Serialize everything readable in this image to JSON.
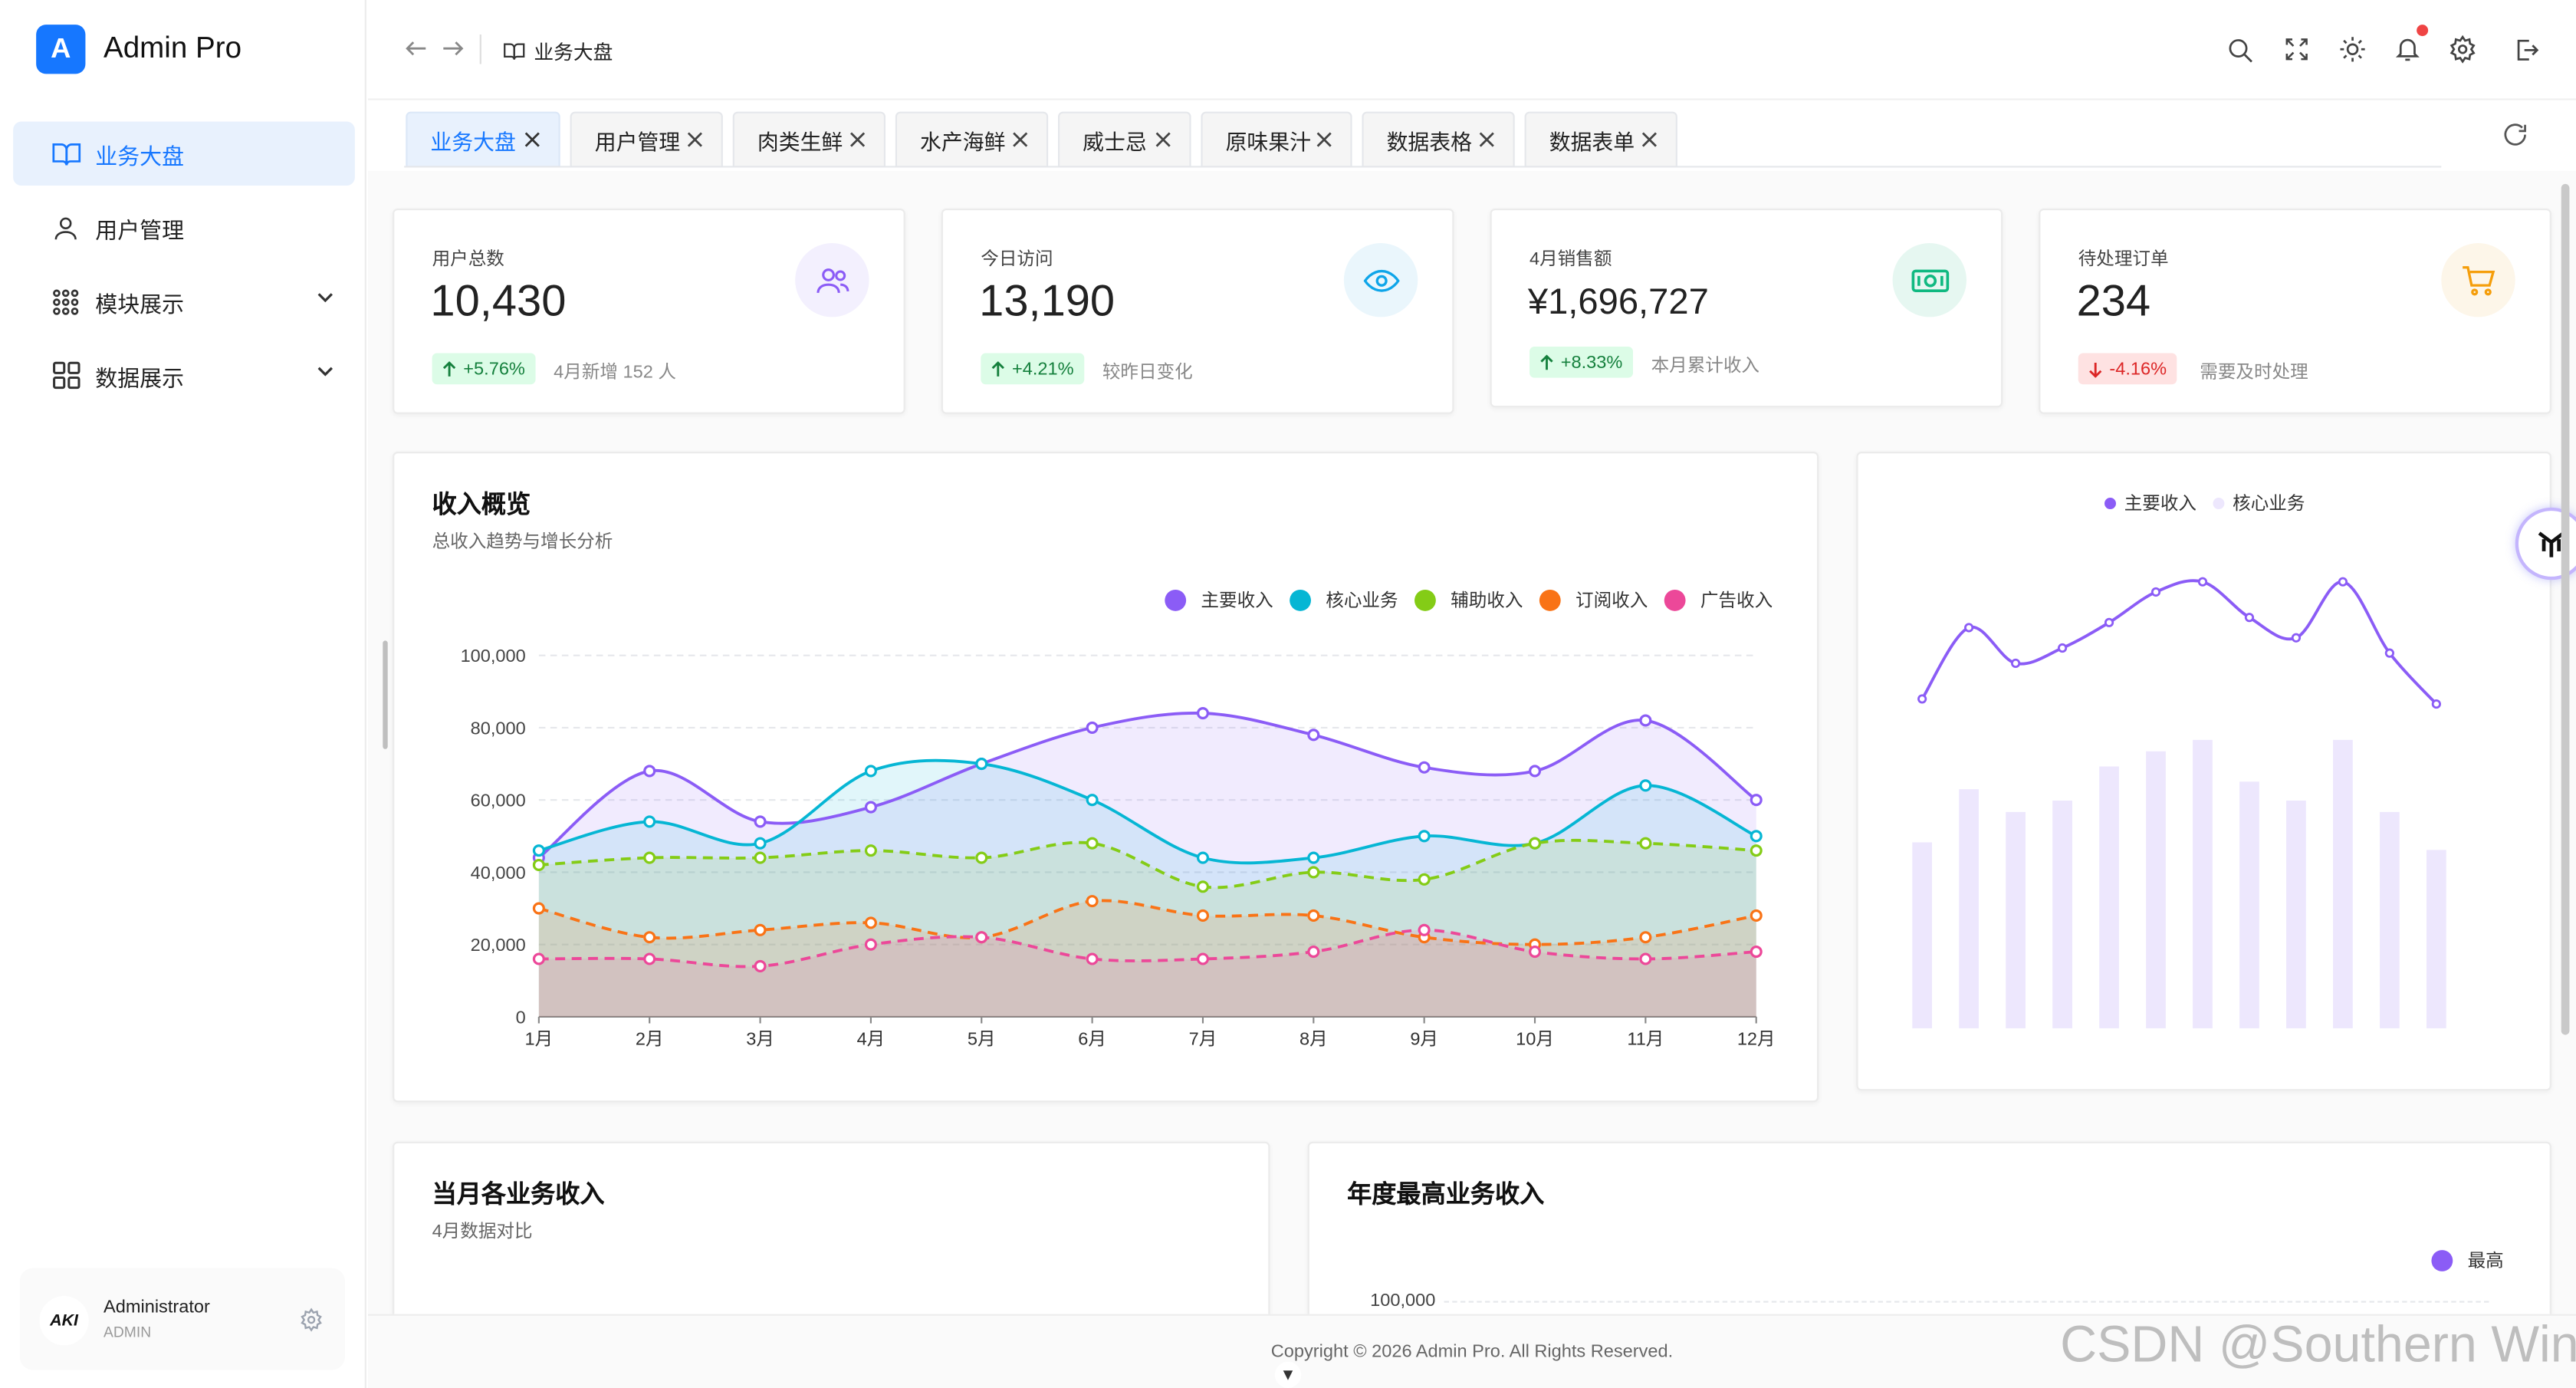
{
  "app": {
    "logo_letter": "A",
    "name": "Admin Pro"
  },
  "sidebar": {
    "items": [
      {
        "label": "业务大盘",
        "icon": "book-icon",
        "active": true
      },
      {
        "label": "用户管理",
        "icon": "user-icon"
      },
      {
        "label": "模块展示",
        "icon": "grid-dots-icon",
        "expandable": true
      },
      {
        "label": "数据展示",
        "icon": "layout-grid-icon",
        "expandable": true
      }
    ],
    "user": {
      "name": "Administrator",
      "role": "ADMIN",
      "avatar_text": "AKI"
    }
  },
  "header": {
    "breadcrumb": "业务大盘"
  },
  "tabs": [
    "业务大盘",
    "用户管理",
    "肉类生鲜",
    "水产海鲜",
    "威士忌",
    "原味果汁",
    "数据表格",
    "数据表单"
  ],
  "stats": [
    {
      "label": "用户总数",
      "value": "10,430",
      "change": "+5.76%",
      "direction": "up",
      "desc": "4月新增 152 人",
      "icon": "users-icon",
      "color": "#8b5cf6"
    },
    {
      "label": "今日访问",
      "value": "13,190",
      "change": "+4.21%",
      "direction": "up",
      "desc": "较昨日变化",
      "icon": "eye-icon",
      "color": "#0ea5e9"
    },
    {
      "label": "4月销售额",
      "value": "¥1,696,727",
      "change": "+8.33%",
      "direction": "up",
      "desc": "本月累计收入",
      "icon": "money-icon",
      "color": "#10b981"
    },
    {
      "label": "待处理订单",
      "value": "234",
      "change": "-4.16%",
      "direction": "down",
      "desc": "需要及时处理",
      "icon": "cart-icon",
      "color": "#f59e0b"
    }
  ],
  "income_card": {
    "title": "收入概览",
    "subtitle": "总收入趋势与增长分析"
  },
  "side_card": {
    "legend": [
      "主要收入",
      "核心业务"
    ]
  },
  "monthly_card": {
    "title": "当月各业务收入",
    "subtitle": "4月数据对比"
  },
  "annual_card": {
    "title": "年度最高业务收入",
    "legend": "最高",
    "tick": "100,000"
  },
  "footer": {
    "text": "Copyright © 2026 Admin Pro. All Rights Reserved."
  },
  "watermark": "CSDN @Southern Wind",
  "chart_data": [
    {
      "type": "area",
      "categories": [
        "1月",
        "2月",
        "3月",
        "4月",
        "5月",
        "6月",
        "7月",
        "8月",
        "9月",
        "10月",
        "11月",
        "12月"
      ],
      "ylim": [
        0,
        100000
      ],
      "yticks": [
        "0",
        "20,000",
        "40,000",
        "60,000",
        "80,000",
        "100,000"
      ],
      "legend_position": "top-right",
      "grid": true,
      "series": [
        {
          "name": "主要收入",
          "color": "#8b5cf6",
          "dashed": false,
          "values": [
            44000,
            68000,
            54000,
            58000,
            70000,
            80000,
            84000,
            78000,
            69000,
            68000,
            82000,
            60000
          ]
        },
        {
          "name": "核心业务",
          "color": "#06b6d4",
          "dashed": false,
          "values": [
            46000,
            54000,
            48000,
            68000,
            70000,
            60000,
            44000,
            44000,
            50000,
            48000,
            64000,
            50000
          ]
        },
        {
          "name": "辅助收入",
          "color": "#84cc16",
          "dashed": true,
          "values": [
            42000,
            44000,
            44000,
            46000,
            44000,
            48000,
            36000,
            40000,
            38000,
            48000,
            48000,
            46000
          ]
        },
        {
          "name": "订阅收入",
          "color": "#f97316",
          "dashed": true,
          "values": [
            30000,
            22000,
            24000,
            26000,
            22000,
            32000,
            28000,
            28000,
            22000,
            20000,
            22000,
            28000
          ]
        },
        {
          "name": "广告收入",
          "color": "#ec4899",
          "dashed": true,
          "values": [
            16000,
            16000,
            14000,
            20000,
            22000,
            16000,
            16000,
            18000,
            24000,
            18000,
            16000,
            18000
          ]
        }
      ]
    },
    {
      "type": "bar",
      "legend_position": "top",
      "series": [
        {
          "name": "主要收入",
          "type": "line",
          "color": "#8b5cf6",
          "values": [
            55,
            69,
            62,
            65,
            70,
            76,
            78,
            71,
            67,
            78,
            64,
            54
          ]
        },
        {
          "name": "核心业务",
          "type": "bar",
          "color": "#ede7fd",
          "values": [
            49,
            63,
            57,
            60,
            69,
            73,
            76,
            65,
            60,
            76,
            57,
            47
          ]
        }
      ]
    }
  ]
}
